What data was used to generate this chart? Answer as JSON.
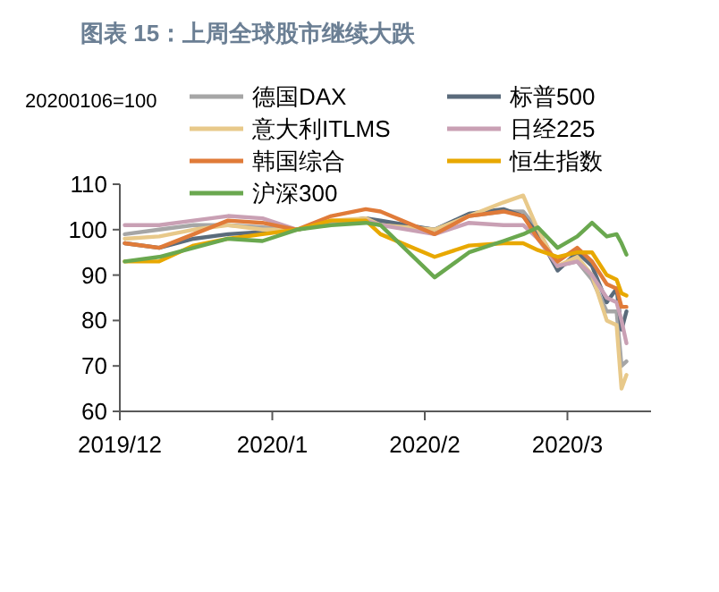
{
  "chart_data": {
    "type": "line",
    "title": "图表 15：上周全球股市继续大跌",
    "ylabel": "20200106=100",
    "x": [
      "2019-12-02",
      "2019-12-09",
      "2019-12-16",
      "2019-12-23",
      "2019-12-30",
      "2020-01-06",
      "2020-01-13",
      "2020-01-20",
      "2020-01-23",
      "2020-02-03",
      "2020-02-10",
      "2020-02-17",
      "2020-02-21",
      "2020-02-24",
      "2020-02-28",
      "2020-03-03",
      "2020-03-06",
      "2020-03-09",
      "2020-03-11",
      "2020-03-12",
      "2020-03-13"
    ],
    "series": [
      {
        "name": "德国DAX",
        "color": "#a6a6a6",
        "values": [
          99,
          100,
          101,
          101,
          100.5,
          100,
          101.5,
          102.5,
          101.5,
          100,
          103,
          104,
          104,
          100,
          92,
          93,
          89,
          82,
          82,
          70,
          71
        ]
      },
      {
        "name": "标普500",
        "color": "#5a6b7b",
        "values": [
          97,
          96,
          98,
          99,
          99.5,
          100,
          101.5,
          102.5,
          102,
          100,
          103.5,
          104.5,
          103,
          99,
          91,
          95,
          92,
          84,
          87,
          78,
          82
        ]
      },
      {
        "name": "意大利ITLMS",
        "color": "#e8c98a",
        "values": [
          98,
          98.5,
          100,
          101,
          100,
          100,
          102,
          102.5,
          101,
          100,
          103,
          106,
          107.5,
          100,
          92,
          94,
          90,
          80,
          79,
          65,
          68
        ]
      },
      {
        "name": "日经225",
        "color": "#c9a0b4",
        "values": [
          101,
          101,
          102,
          103,
          102.5,
          100,
          101.5,
          102,
          101,
          99,
          101.5,
          101,
          101,
          98,
          92,
          93,
          90,
          85,
          84,
          80,
          75
        ]
      },
      {
        "name": "韩国综合",
        "color": "#e07b39",
        "values": [
          97,
          96,
          99,
          102,
          101.5,
          100,
          103,
          104.5,
          104,
          99,
          103,
          104,
          103,
          98,
          93,
          96,
          93,
          88,
          87,
          83,
          83
        ]
      },
      {
        "name": "恒生指数",
        "color": "#e8a800",
        "values": [
          93,
          93,
          96.5,
          98,
          99,
          100,
          102,
          102,
          99,
          94,
          96.5,
          97,
          97,
          95.5,
          94,
          95,
          95,
          90,
          89,
          86,
          85.5
        ]
      },
      {
        "name": "沪深300",
        "color": "#6aa84f",
        "values": [
          93,
          94,
          96,
          98,
          97.5,
          100,
          101,
          101.5,
          101,
          89.5,
          95,
          97.5,
          99,
          100.5,
          96,
          98.5,
          101.5,
          98.5,
          99,
          97,
          94.5
        ]
      }
    ],
    "xlim": [
      "2019-12-01",
      "2020-03-18"
    ],
    "xticks": [
      {
        "value": "2019-12-01",
        "label": "2019/12"
      },
      {
        "value": "2020-01-01",
        "label": "2020/1"
      },
      {
        "value": "2020-02-01",
        "label": "2020/2"
      },
      {
        "value": "2020-03-01",
        "label": "2020/3"
      }
    ],
    "ylim": [
      60,
      110
    ],
    "yticks": [
      60,
      70,
      80,
      90,
      100,
      110
    ],
    "legend": "top",
    "grid": false,
    "marker": "none",
    "line_style": "solid"
  }
}
